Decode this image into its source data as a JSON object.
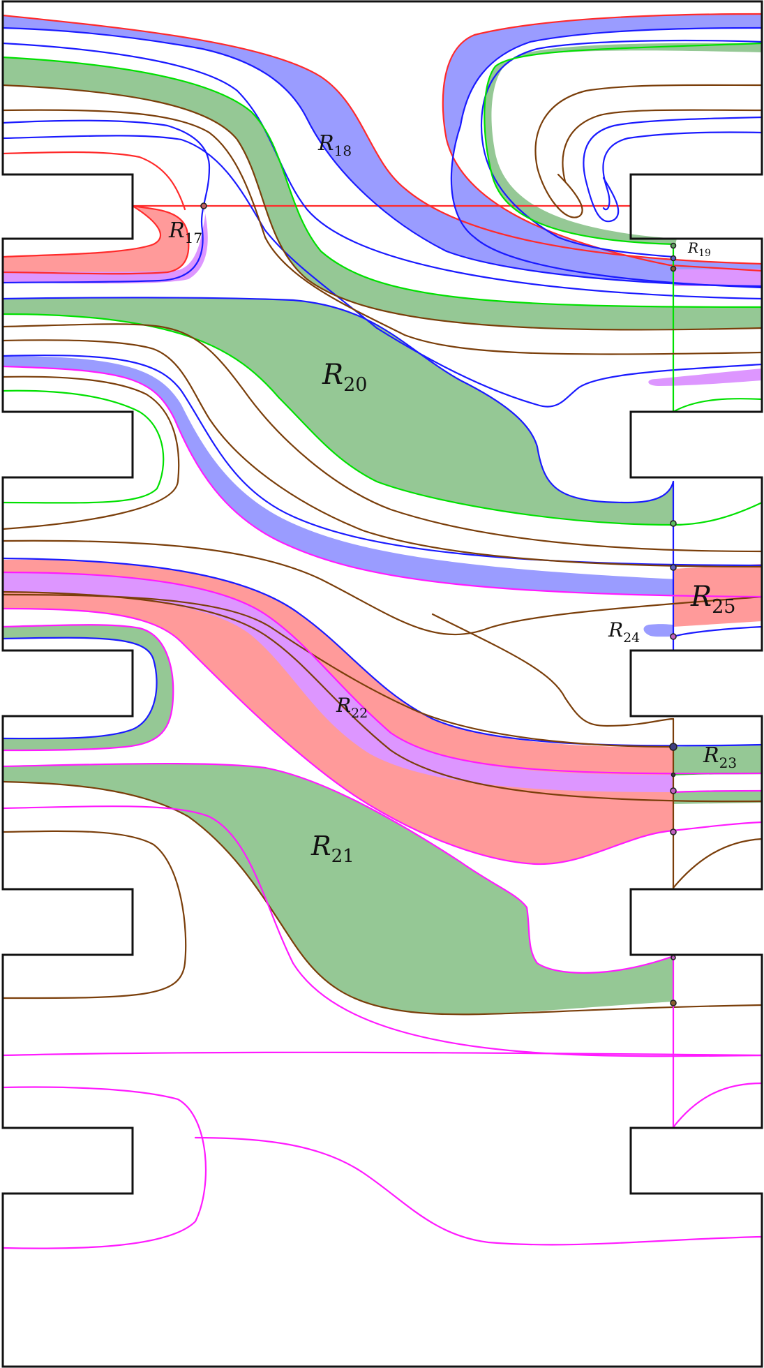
{
  "colors": {
    "red": "#ff2a2a",
    "blue": "#1a1aff",
    "green": "#00e000",
    "brown": "#7a3e0a",
    "magenta": "#ff1aff",
    "fill_blue": "#9a9cff",
    "fill_green": "#95c895",
    "fill_red": "#ff9a9a",
    "fill_violet": "#dd96ff",
    "boundary": "#111111"
  },
  "labels": [
    {
      "id": "r18",
      "base": "R",
      "sub": "18"
    },
    {
      "id": "r17",
      "base": "R",
      "sub": "17"
    },
    {
      "id": "r19",
      "base": "R",
      "sub": "19"
    },
    {
      "id": "r20",
      "base": "R",
      "sub": "20"
    },
    {
      "id": "r25",
      "base": "R",
      "sub": "25"
    },
    {
      "id": "r24",
      "base": "R",
      "sub": "24"
    },
    {
      "id": "r22",
      "base": "R",
      "sub": "22"
    },
    {
      "id": "r23",
      "base": "R",
      "sub": "23"
    },
    {
      "id": "r21",
      "base": "R",
      "sub": "21"
    }
  ]
}
